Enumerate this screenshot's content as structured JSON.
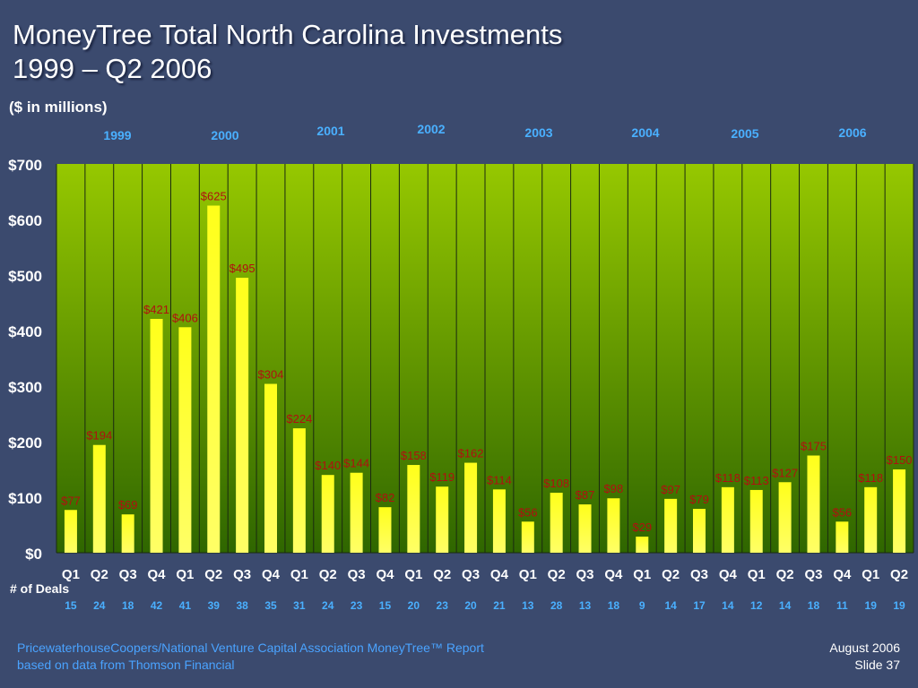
{
  "title_line1": "MoneyTree Total North Carolina Investments",
  "title_line2": "1999 – Q2 2006",
  "units": "($ in millions)",
  "deals_label": "# of Deals",
  "footer": {
    "source_line1": "PricewaterhouseCoopers/National Venture Capital Association MoneyTree™ Report",
    "source_line2": "based on data from Thomson Financial",
    "date": "August 2006",
    "slide": "Slide 37"
  },
  "colors": {
    "background": "#3b4a6e",
    "plot_top": "#96c800",
    "plot_bottom": "#2f6600",
    "bar": "#ffff1a",
    "value_label": "#b01010",
    "year_label": "#4ab0ff",
    "deal_label": "#4ab0ff"
  },
  "chart_data": {
    "type": "bar",
    "title": "MoneyTree Total North Carolina Investments 1999 – Q2 2006",
    "ylabel": "($ in millions)",
    "ylim": [
      0,
      700
    ],
    "yticks": [
      0,
      100,
      200,
      300,
      400,
      500,
      600,
      700
    ],
    "ytick_labels": [
      "$0",
      "$100",
      "$200",
      "$300",
      "$400",
      "$500",
      "$600",
      "$700"
    ],
    "grid": true,
    "years": [
      "1999",
      "2000",
      "2001",
      "2002",
      "2003",
      "2004",
      "2005",
      "2006"
    ],
    "categories": [
      "Q1",
      "Q2",
      "Q3",
      "Q4",
      "Q1",
      "Q2",
      "Q3",
      "Q4",
      "Q1",
      "Q2",
      "Q3",
      "Q4",
      "Q1",
      "Q2",
      "Q3",
      "Q4",
      "Q1",
      "Q2",
      "Q3",
      "Q4",
      "Q1",
      "Q2",
      "Q3",
      "Q4",
      "Q1",
      "Q2",
      "Q3",
      "Q4",
      "Q1",
      "Q2"
    ],
    "values": [
      77,
      194,
      69,
      421,
      406,
      625,
      495,
      304,
      224,
      140,
      144,
      82,
      158,
      119,
      162,
      114,
      56,
      108,
      87,
      98,
      29,
      97,
      79,
      118,
      113,
      127,
      175,
      56,
      118,
      150
    ],
    "value_labels": [
      "$77",
      "$194",
      "$69",
      "$421",
      "$406",
      "$625",
      "$495",
      "$304",
      "$224",
      "$140",
      "$144",
      "$82",
      "$158",
      "$119",
      "$162",
      "$114",
      "$56",
      "$108",
      "$87",
      "$98",
      "$29",
      "$97",
      "$79",
      "$118",
      "$113",
      "$127",
      "$175",
      "$56",
      "$118",
      "$150"
    ],
    "deals": [
      15,
      24,
      18,
      42,
      41,
      39,
      38,
      35,
      31,
      24,
      23,
      15,
      20,
      23,
      20,
      21,
      13,
      28,
      13,
      18,
      9,
      14,
      17,
      14,
      12,
      14,
      18,
      11,
      19,
      19
    ]
  }
}
